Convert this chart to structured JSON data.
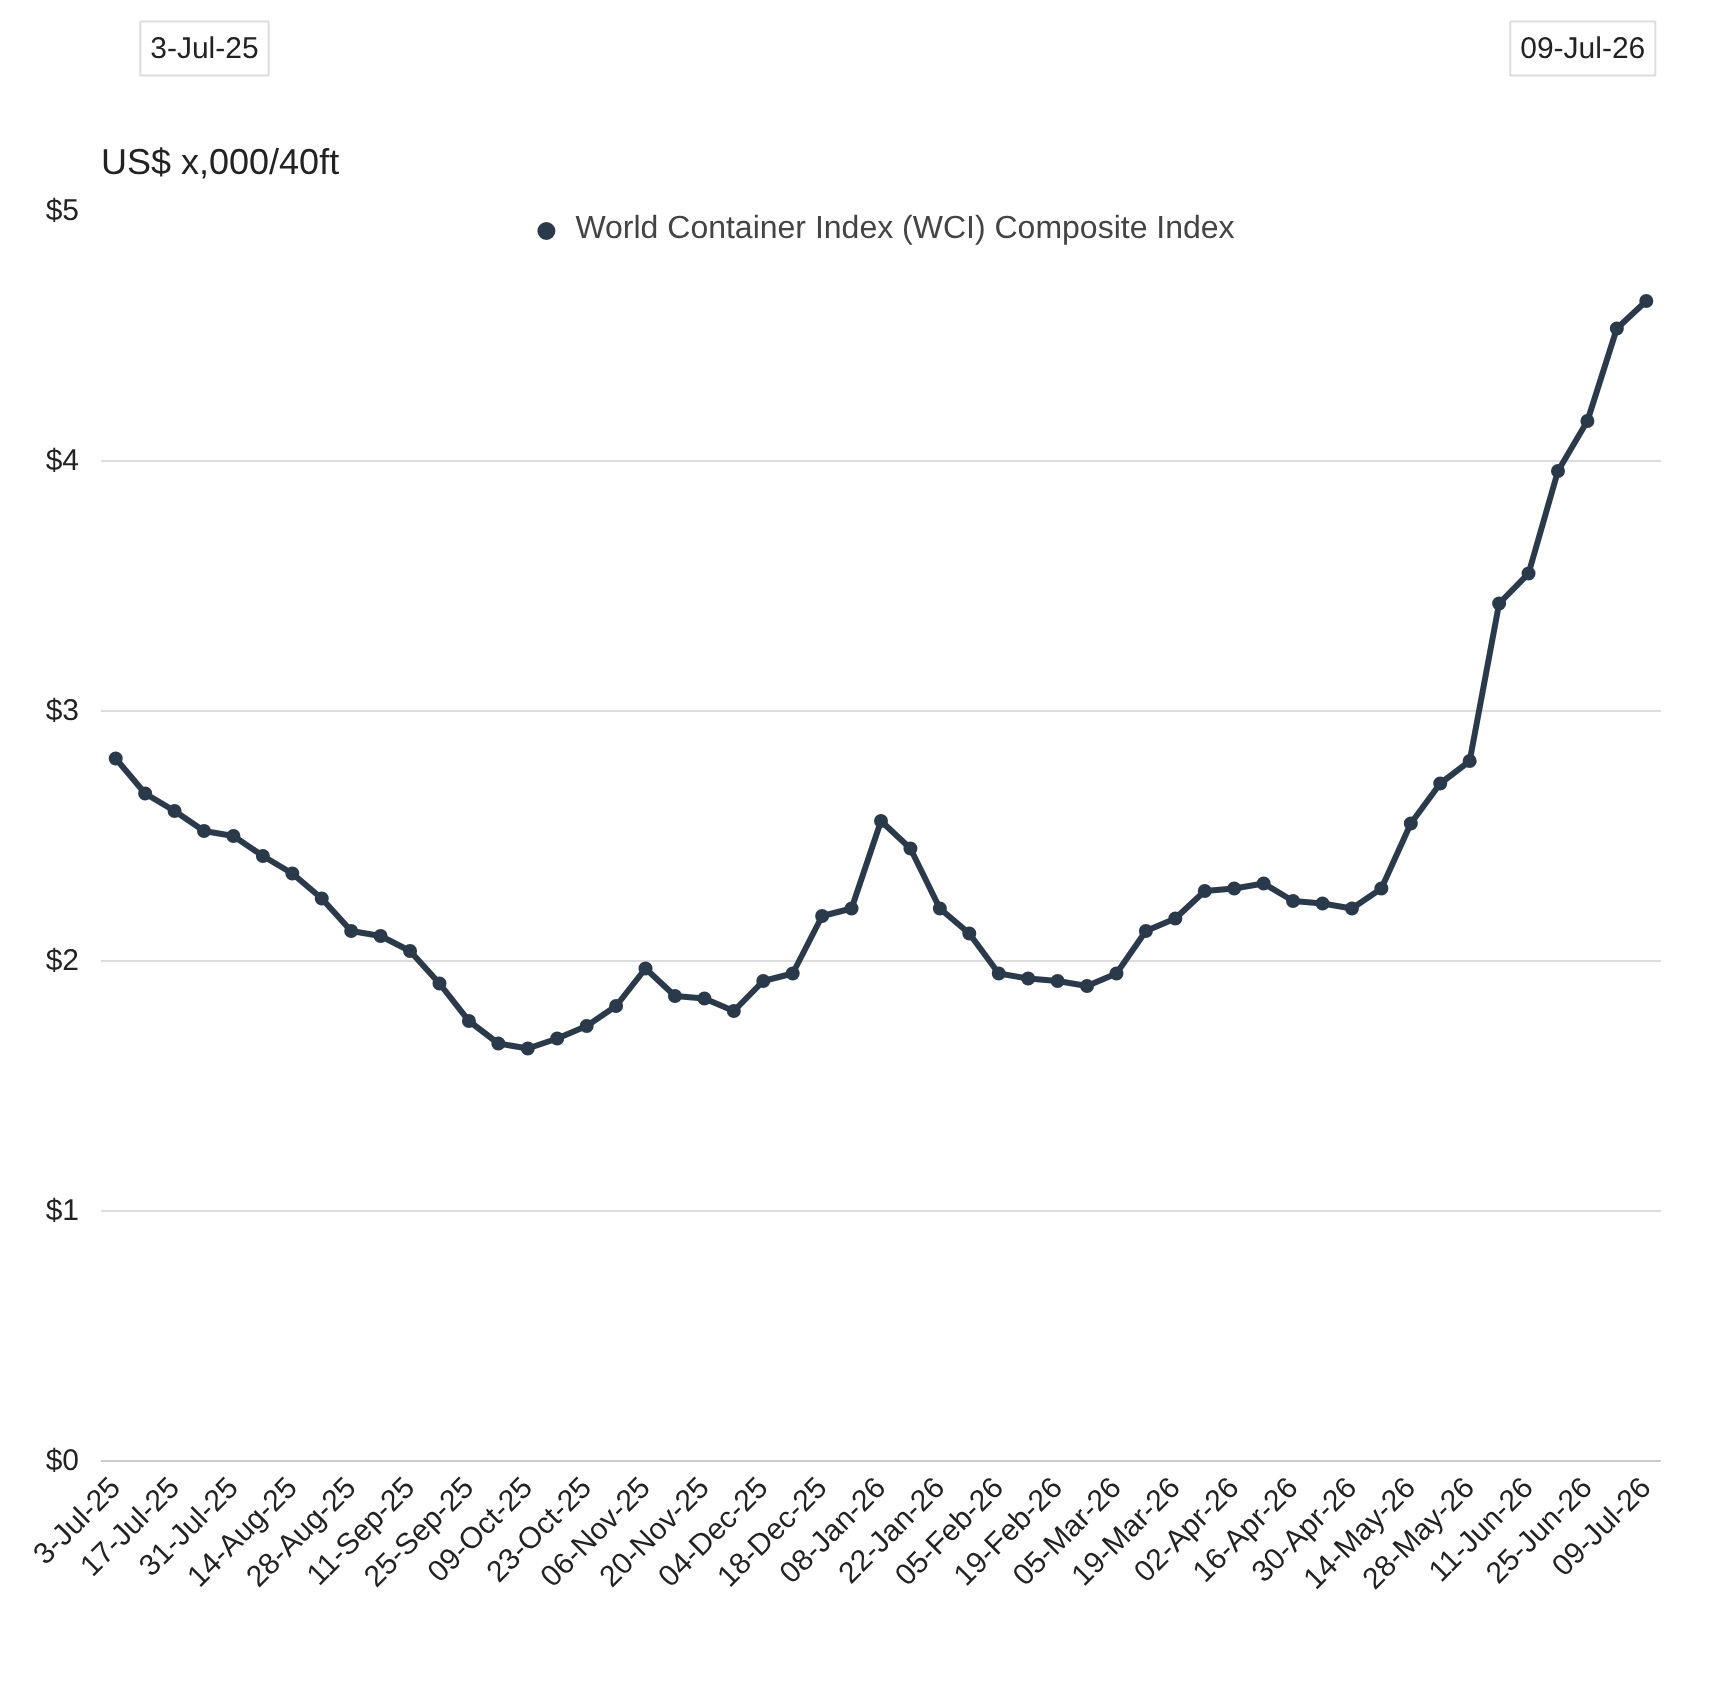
{
  "chart_data": {
    "type": "line",
    "ylabel": "US$ x,000/40ft",
    "annotations": [
      "3-Jul-25",
      "09-Jul-26"
    ],
    "categories": [
      "3-Jul-25",
      null,
      "17-Jul-25",
      null,
      "31-Jul-25",
      null,
      "14-Aug-25",
      null,
      "28-Aug-25",
      null,
      "11-Sep-25",
      null,
      "25-Sep-25",
      null,
      "09-Oct-25",
      null,
      "23-Oct-25",
      null,
      "06-Nov-25",
      null,
      "20-Nov-25",
      null,
      "04-Dec-25",
      null,
      "18-Dec-25",
      null,
      "08-Jan-26",
      null,
      "22-Jan-26",
      null,
      "05-Feb-26",
      null,
      "19-Feb-26",
      null,
      "05-Mar-26",
      null,
      "19-Mar-26",
      null,
      "02-Apr-26",
      null,
      "16-Apr-26",
      null,
      "30-Apr-26",
      null,
      "14-May-26",
      null,
      "28-May-26",
      null,
      "11-Jun-26",
      null,
      "25-Jun-26",
      null,
      "09-Jul-26"
    ],
    "series": [
      {
        "name": "World Container Index (WCI) Composite Index",
        "color": "#2b3a4a",
        "values": [
          2.81,
          2.67,
          2.6,
          2.52,
          2.5,
          2.42,
          2.35,
          2.25,
          2.12,
          2.1,
          2.04,
          1.91,
          1.76,
          1.67,
          1.65,
          1.69,
          1.74,
          1.82,
          1.97,
          1.86,
          1.85,
          1.8,
          1.92,
          1.95,
          2.18,
          2.21,
          2.56,
          2.45,
          2.21,
          2.11,
          1.95,
          1.93,
          1.92,
          1.9,
          1.95,
          2.12,
          2.17,
          2.28,
          2.29,
          2.31,
          2.24,
          2.23,
          2.21,
          2.29,
          2.55,
          2.71,
          2.8,
          3.43,
          3.55,
          3.96,
          4.16,
          4.53,
          4.64
        ]
      }
    ],
    "ylim": [
      0,
      5
    ],
    "yticks": [
      {
        "value": 0,
        "label": "$0"
      },
      {
        "value": 1,
        "label": "$1"
      },
      {
        "value": 2,
        "label": "$2"
      },
      {
        "value": 3,
        "label": "$3"
      },
      {
        "value": 4,
        "label": "$4"
      },
      {
        "value": 5,
        "label": "$5"
      }
    ],
    "grid": "y",
    "legend": "top",
    "marker": "circle",
    "line_style": "solid"
  }
}
